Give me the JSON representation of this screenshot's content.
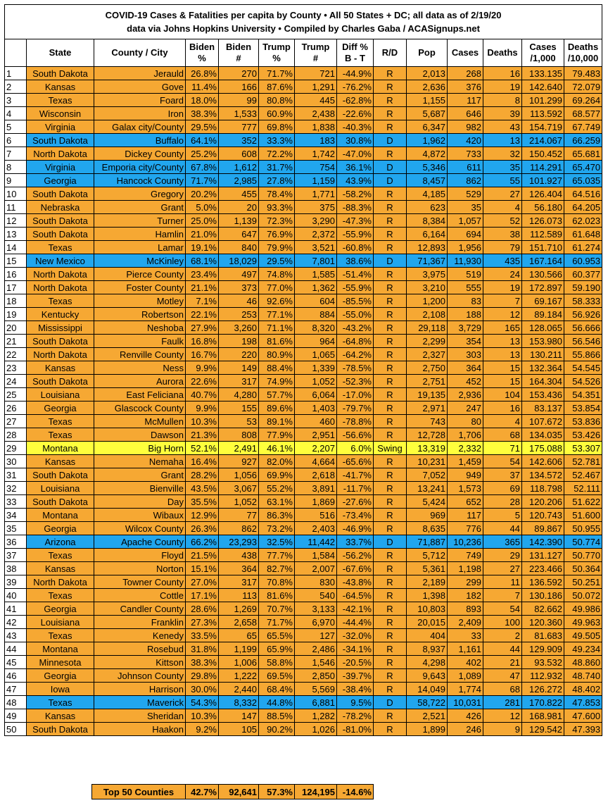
{
  "title": {
    "lines": [
      "COVID-19 Cases & Fatalities per capita by County • All 50 States + DC; all data as of 2/19/20",
      "data via Johns Hopkins University • Compiled by Charles Gaba / ACASignups.net"
    ]
  },
  "table": {
    "headers": [
      [
        "State"
      ],
      [
        "County / City"
      ],
      [
        "Biden",
        "%"
      ],
      [
        "Biden",
        "#"
      ],
      [
        "Trump",
        "%"
      ],
      [
        "Trump",
        "#"
      ],
      [
        "Diff %",
        "B - T"
      ],
      [
        "R/D"
      ],
      [
        "Pop"
      ],
      [
        "Cases"
      ],
      [
        "Deaths"
      ],
      [
        "Cases",
        "/1,000"
      ],
      [
        "Deaths",
        "/10,000"
      ]
    ],
    "fills": {
      "R": "#f6a833",
      "D": "#21a6ee",
      "Swing": "#ffff3c"
    },
    "rows": [
      [
        "1",
        "South Dakota",
        "Jerauld",
        "26.8%",
        "270",
        "71.7%",
        "721",
        "-44.9%",
        "R",
        "2,013",
        "268",
        "16",
        "133.135",
        "79.483"
      ],
      [
        "2",
        "Kansas",
        "Gove",
        "11.4%",
        "166",
        "87.6%",
        "1,291",
        "-76.2%",
        "R",
        "2,636",
        "376",
        "19",
        "142.640",
        "72.079"
      ],
      [
        "3",
        "Texas",
        "Foard",
        "18.0%",
        "99",
        "80.8%",
        "445",
        "-62.8%",
        "R",
        "1,155",
        "117",
        "8",
        "101.299",
        "69.264"
      ],
      [
        "4",
        "Wisconsin",
        "Iron",
        "38.3%",
        "1,533",
        "60.9%",
        "2,438",
        "-22.6%",
        "R",
        "5,687",
        "646",
        "39",
        "113.592",
        "68.577"
      ],
      [
        "5",
        "Virginia",
        "Galax city/County",
        "29.5%",
        "777",
        "69.8%",
        "1,838",
        "-40.3%",
        "R",
        "6,347",
        "982",
        "43",
        "154.719",
        "67.749"
      ],
      [
        "6",
        "South Dakota",
        "Buffalo",
        "64.1%",
        "352",
        "33.3%",
        "183",
        "30.8%",
        "D",
        "1,962",
        "420",
        "13",
        "214.067",
        "66.259"
      ],
      [
        "7",
        "North Dakota",
        "Dickey County",
        "25.2%",
        "608",
        "72.2%",
        "1,742",
        "-47.0%",
        "R",
        "4,872",
        "733",
        "32",
        "150.452",
        "65.681"
      ],
      [
        "8",
        "Virginia",
        "Emporia city/County",
        "67.8%",
        "1,612",
        "31.7%",
        "754",
        "36.1%",
        "D",
        "5,346",
        "611",
        "35",
        "114.291",
        "65.470"
      ],
      [
        "9",
        "Georgia",
        "Hancock County",
        "71.7%",
        "2,985",
        "27.8%",
        "1,159",
        "43.9%",
        "D",
        "8,457",
        "862",
        "55",
        "101.927",
        "65.035"
      ],
      [
        "10",
        "South Dakota",
        "Gregory",
        "20.2%",
        "455",
        "78.4%",
        "1,771",
        "-58.2%",
        "R",
        "4,185",
        "529",
        "27",
        "126.404",
        "64.516"
      ],
      [
        "11",
        "Nebraska",
        "Grant",
        "5.0%",
        "20",
        "93.3%",
        "375",
        "-88.3%",
        "R",
        "623",
        "35",
        "4",
        "56.180",
        "64.205"
      ],
      [
        "12",
        "South Dakota",
        "Turner",
        "25.0%",
        "1,139",
        "72.3%",
        "3,290",
        "-47.3%",
        "R",
        "8,384",
        "1,057",
        "52",
        "126.073",
        "62.023"
      ],
      [
        "13",
        "South Dakota",
        "Hamlin",
        "21.0%",
        "647",
        "76.9%",
        "2,372",
        "-55.9%",
        "R",
        "6,164",
        "694",
        "38",
        "112.589",
        "61.648"
      ],
      [
        "14",
        "Texas",
        "Lamar",
        "19.1%",
        "840",
        "79.9%",
        "3,521",
        "-60.8%",
        "R",
        "12,893",
        "1,956",
        "79",
        "151.710",
        "61.274"
      ],
      [
        "15",
        "New Mexico",
        "McKinley",
        "68.1%",
        "18,029",
        "29.5%",
        "7,801",
        "38.6%",
        "D",
        "71,367",
        "11,930",
        "435",
        "167.164",
        "60.953"
      ],
      [
        "16",
        "North Dakota",
        "Pierce County",
        "23.4%",
        "497",
        "74.8%",
        "1,585",
        "-51.4%",
        "R",
        "3,975",
        "519",
        "24",
        "130.566",
        "60.377"
      ],
      [
        "17",
        "North Dakota",
        "Foster County",
        "21.1%",
        "373",
        "77.0%",
        "1,362",
        "-55.9%",
        "R",
        "3,210",
        "555",
        "19",
        "172.897",
        "59.190"
      ],
      [
        "18",
        "Texas",
        "Motley",
        "7.1%",
        "46",
        "92.6%",
        "604",
        "-85.5%",
        "R",
        "1,200",
        "83",
        "7",
        "69.167",
        "58.333"
      ],
      [
        "19",
        "Kentucky",
        "Robertson",
        "22.1%",
        "253",
        "77.1%",
        "884",
        "-55.0%",
        "R",
        "2,108",
        "188",
        "12",
        "89.184",
        "56.926"
      ],
      [
        "20",
        "Mississippi",
        "Neshoba",
        "27.9%",
        "3,260",
        "71.1%",
        "8,320",
        "-43.2%",
        "R",
        "29,118",
        "3,729",
        "165",
        "128.065",
        "56.666"
      ],
      [
        "21",
        "South Dakota",
        "Faulk",
        "16.8%",
        "198",
        "81.6%",
        "964",
        "-64.8%",
        "R",
        "2,299",
        "354",
        "13",
        "153.980",
        "56.546"
      ],
      [
        "22",
        "North Dakota",
        "Renville County",
        "16.7%",
        "220",
        "80.9%",
        "1,065",
        "-64.2%",
        "R",
        "2,327",
        "303",
        "13",
        "130.211",
        "55.866"
      ],
      [
        "23",
        "Kansas",
        "Ness",
        "9.9%",
        "149",
        "88.4%",
        "1,339",
        "-78.5%",
        "R",
        "2,750",
        "364",
        "15",
        "132.364",
        "54.545"
      ],
      [
        "24",
        "South Dakota",
        "Aurora",
        "22.6%",
        "317",
        "74.9%",
        "1,052",
        "-52.3%",
        "R",
        "2,751",
        "452",
        "15",
        "164.304",
        "54.526"
      ],
      [
        "25",
        "Louisiana",
        "East Feliciana",
        "40.7%",
        "4,280",
        "57.7%",
        "6,064",
        "-17.0%",
        "R",
        "19,135",
        "2,936",
        "104",
        "153.436",
        "54.351"
      ],
      [
        "26",
        "Georgia",
        "Glascock County",
        "9.9%",
        "155",
        "89.6%",
        "1,403",
        "-79.7%",
        "R",
        "2,971",
        "247",
        "16",
        "83.137",
        "53.854"
      ],
      [
        "27",
        "Texas",
        "McMullen",
        "10.3%",
        "53",
        "89.1%",
        "460",
        "-78.8%",
        "R",
        "743",
        "80",
        "4",
        "107.672",
        "53.836"
      ],
      [
        "28",
        "Texas",
        "Dawson",
        "21.3%",
        "808",
        "77.9%",
        "2,951",
        "-56.6%",
        "R",
        "12,728",
        "1,706",
        "68",
        "134.035",
        "53.426"
      ],
      [
        "29",
        "Montana",
        "Big Horn",
        "52.1%",
        "2,491",
        "46.1%",
        "2,207",
        "6.0%",
        "Swing",
        "13,319",
        "2,332",
        "71",
        "175.088",
        "53.307"
      ],
      [
        "30",
        "Kansas",
        "Nemaha",
        "16.4%",
        "927",
        "82.0%",
        "4,664",
        "-65.6%",
        "R",
        "10,231",
        "1,459",
        "54",
        "142.606",
        "52.781"
      ],
      [
        "31",
        "South Dakota",
        "Grant",
        "28.2%",
        "1,056",
        "69.9%",
        "2,618",
        "-41.7%",
        "R",
        "7,052",
        "949",
        "37",
        "134.572",
        "52.467"
      ],
      [
        "32",
        "Louisiana",
        "Bienville",
        "43.5%",
        "3,067",
        "55.2%",
        "3,891",
        "-11.7%",
        "R",
        "13,241",
        "1,573",
        "69",
        "118.798",
        "52.111"
      ],
      [
        "33",
        "South Dakota",
        "Day",
        "35.5%",
        "1,052",
        "63.1%",
        "1,869",
        "-27.6%",
        "R",
        "5,424",
        "652",
        "28",
        "120.206",
        "51.622"
      ],
      [
        "34",
        "Montana",
        "Wibaux",
        "12.9%",
        "77",
        "86.3%",
        "516",
        "-73.4%",
        "R",
        "969",
        "117",
        "5",
        "120.743",
        "51.600"
      ],
      [
        "35",
        "Georgia",
        "Wilcox County",
        "26.3%",
        "862",
        "73.2%",
        "2,403",
        "-46.9%",
        "R",
        "8,635",
        "776",
        "44",
        "89.867",
        "50.955"
      ],
      [
        "36",
        "Arizona",
        "Apache County",
        "66.2%",
        "23,293",
        "32.5%",
        "11,442",
        "33.7%",
        "D",
        "71,887",
        "10,236",
        "365",
        "142.390",
        "50.774"
      ],
      [
        "37",
        "Texas",
        "Floyd",
        "21.5%",
        "438",
        "77.7%",
        "1,584",
        "-56.2%",
        "R",
        "5,712",
        "749",
        "29",
        "131.127",
        "50.770"
      ],
      [
        "38",
        "Kansas",
        "Norton",
        "15.1%",
        "364",
        "82.7%",
        "2,007",
        "-67.6%",
        "R",
        "5,361",
        "1,198",
        "27",
        "223.466",
        "50.364"
      ],
      [
        "39",
        "North Dakota",
        "Towner County",
        "27.0%",
        "317",
        "70.8%",
        "830",
        "-43.8%",
        "R",
        "2,189",
        "299",
        "11",
        "136.592",
        "50.251"
      ],
      [
        "40",
        "Texas",
        "Cottle",
        "17.1%",
        "113",
        "81.6%",
        "540",
        "-64.5%",
        "R",
        "1,398",
        "182",
        "7",
        "130.186",
        "50.072"
      ],
      [
        "41",
        "Georgia",
        "Candler County",
        "28.6%",
        "1,269",
        "70.7%",
        "3,133",
        "-42.1%",
        "R",
        "10,803",
        "893",
        "54",
        "82.662",
        "49.986"
      ],
      [
        "42",
        "Louisiana",
        "Franklin",
        "27.3%",
        "2,658",
        "71.7%",
        "6,970",
        "-44.4%",
        "R",
        "20,015",
        "2,409",
        "100",
        "120.360",
        "49.963"
      ],
      [
        "43",
        "Texas",
        "Kenedy",
        "33.5%",
        "65",
        "65.5%",
        "127",
        "-32.0%",
        "R",
        "404",
        "33",
        "2",
        "81.683",
        "49.505"
      ],
      [
        "44",
        "Montana",
        "Rosebud",
        "31.8%",
        "1,199",
        "65.9%",
        "2,486",
        "-34.1%",
        "R",
        "8,937",
        "1,161",
        "44",
        "129.909",
        "49.234"
      ],
      [
        "45",
        "Minnesota",
        "Kittson",
        "38.3%",
        "1,006",
        "58.8%",
        "1,546",
        "-20.5%",
        "R",
        "4,298",
        "402",
        "21",
        "93.532",
        "48.860"
      ],
      [
        "46",
        "Georgia",
        "Johnson County",
        "29.8%",
        "1,222",
        "69.5%",
        "2,850",
        "-39.7%",
        "R",
        "9,643",
        "1,089",
        "47",
        "112.932",
        "48.740"
      ],
      [
        "47",
        "Iowa",
        "Harrison",
        "30.0%",
        "2,440",
        "68.4%",
        "5,569",
        "-38.4%",
        "R",
        "14,049",
        "1,774",
        "68",
        "126.272",
        "48.402"
      ],
      [
        "48",
        "Texas",
        "Maverick",
        "54.3%",
        "8,332",
        "44.8%",
        "6,881",
        "9.5%",
        "D",
        "58,722",
        "10,031",
        "281",
        "170.822",
        "47.853"
      ],
      [
        "49",
        "Kansas",
        "Sheridan",
        "10.3%",
        "147",
        "88.5%",
        "1,282",
        "-78.2%",
        "R",
        "2,521",
        "426",
        "12",
        "168.981",
        "47.600"
      ],
      [
        "50",
        "South Dakota",
        "Haakon",
        "9.2%",
        "105",
        "90.2%",
        "1,026",
        "-81.0%",
        "R",
        "1,899",
        "246",
        "9",
        "129.542",
        "47.393"
      ]
    ]
  },
  "totals": {
    "label": "Top 50 Counties",
    "values": [
      "42.7%",
      "92,641",
      "57.3%",
      "124,195",
      "-14.6%"
    ]
  }
}
